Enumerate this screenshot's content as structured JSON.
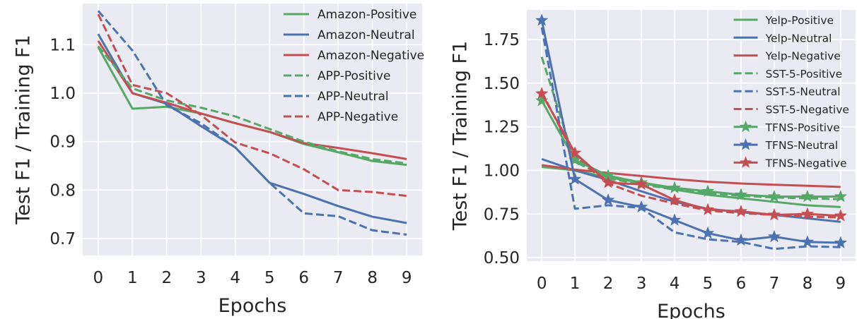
{
  "chart_data": [
    {
      "type": "line",
      "xlabel": "Epochs",
      "ylabel": "Test F1 / Training F1",
      "x": [
        0,
        1,
        2,
        3,
        4,
        5,
        6,
        7,
        8,
        9
      ],
      "xlim": [
        -0.45,
        9.45
      ],
      "ylim": [
        0.665,
        1.185
      ],
      "yticks": [
        0.7,
        0.8,
        0.9,
        1.0,
        1.1
      ],
      "ytick_labels": [
        "0.7",
        "0.8",
        "0.9",
        "1.0",
        "1.1"
      ],
      "grid": true,
      "legend": "top-right",
      "series": [
        {
          "name": "Amazon-Positive",
          "color": "#55a868",
          "style": "solid",
          "marker": "none",
          "values": [
            1.095,
            0.968,
            0.972,
            0.958,
            0.938,
            0.92,
            0.895,
            0.878,
            0.86,
            0.852
          ]
        },
        {
          "name": "Amazon-Neutral",
          "color": "#4c72b0",
          "style": "solid",
          "marker": "none",
          "values": [
            1.122,
            1.0,
            0.978,
            0.932,
            0.888,
            0.815,
            0.792,
            0.767,
            0.745,
            0.732
          ]
        },
        {
          "name": "Amazon-Negative",
          "color": "#c44e52",
          "style": "solid",
          "marker": "none",
          "values": [
            1.108,
            1.0,
            0.98,
            0.958,
            0.938,
            0.92,
            0.897,
            0.887,
            0.876,
            0.864
          ]
        },
        {
          "name": "APP-Positive",
          "color": "#55a868",
          "style": "dashed",
          "marker": "none",
          "values": [
            1.097,
            1.01,
            0.985,
            0.97,
            0.952,
            0.926,
            0.9,
            0.88,
            0.864,
            0.855
          ]
        },
        {
          "name": "APP-Neutral",
          "color": "#4c72b0",
          "style": "dashed",
          "marker": "none",
          "values": [
            1.17,
            1.088,
            0.975,
            0.938,
            0.888,
            0.815,
            0.752,
            0.746,
            0.717,
            0.708
          ]
        },
        {
          "name": "APP-Negative",
          "color": "#c44e52",
          "style": "dashed",
          "marker": "none",
          "values": [
            1.163,
            1.017,
            1.0,
            0.955,
            0.898,
            0.876,
            0.843,
            0.8,
            0.796,
            0.788
          ]
        }
      ]
    },
    {
      "type": "line",
      "xlabel": "Epochs",
      "ylabel": "Test F1 / Training F1",
      "x": [
        0,
        1,
        2,
        3,
        4,
        5,
        6,
        7,
        8,
        9
      ],
      "xlim": [
        -0.45,
        9.45
      ],
      "ylim": [
        0.48,
        1.92
      ],
      "yticks": [
        0.5,
        0.75,
        1.0,
        1.25,
        1.5,
        1.75
      ],
      "ytick_labels": [
        "0.50",
        "0.75",
        "1.00",
        "1.25",
        "1.50",
        "1.75"
      ],
      "grid": true,
      "legend": "top-right",
      "series": [
        {
          "name": "Yelp-Positive",
          "color": "#55a868",
          "style": "solid",
          "marker": "none",
          "values": [
            1.02,
            1.0,
            0.96,
            0.93,
            0.89,
            0.86,
            0.84,
            0.82,
            0.8,
            0.79
          ]
        },
        {
          "name": "Yelp-Neutral",
          "color": "#4c72b0",
          "style": "solid",
          "marker": "none",
          "values": [
            1.065,
            1.0,
            0.945,
            0.88,
            0.82,
            0.78,
            0.76,
            0.745,
            0.725,
            0.705
          ]
        },
        {
          "name": "Yelp-Negative",
          "color": "#c44e52",
          "style": "solid",
          "marker": "none",
          "values": [
            1.03,
            1.005,
            0.985,
            0.968,
            0.95,
            0.935,
            0.925,
            0.918,
            0.912,
            0.905
          ]
        },
        {
          "name": "SST-5-Positive",
          "color": "#55a868",
          "style": "dashed",
          "marker": "none",
          "values": [
            1.65,
            1.05,
            0.955,
            0.92,
            0.89,
            0.87,
            0.855,
            0.845,
            0.84,
            0.835
          ]
        },
        {
          "name": "SST-5-Neutral",
          "color": "#4c72b0",
          "style": "dashed",
          "marker": "none",
          "values": [
            1.82,
            0.78,
            0.8,
            0.785,
            0.645,
            0.605,
            0.59,
            0.55,
            0.565,
            0.56
          ]
        },
        {
          "name": "SST-5-Negative",
          "color": "#c44e52",
          "style": "dashed",
          "marker": "none",
          "values": [
            1.45,
            1.08,
            0.925,
            0.855,
            0.81,
            0.77,
            0.755,
            0.745,
            0.735,
            0.73
          ]
        },
        {
          "name": "TFNS-Positive",
          "color": "#55a868",
          "style": "solid",
          "marker": "star",
          "values": [
            1.4,
            1.06,
            0.97,
            0.93,
            0.9,
            0.88,
            0.86,
            0.85,
            0.85,
            0.85
          ]
        },
        {
          "name": "TFNS-Neutral",
          "color": "#4c72b0",
          "style": "solid",
          "marker": "star",
          "values": [
            1.86,
            0.95,
            0.83,
            0.79,
            0.715,
            0.64,
            0.6,
            0.62,
            0.59,
            0.585
          ]
        },
        {
          "name": "TFNS-Negative",
          "color": "#c44e52",
          "style": "solid",
          "marker": "star",
          "values": [
            1.44,
            1.1,
            0.93,
            0.92,
            0.83,
            0.775,
            0.765,
            0.745,
            0.75,
            0.74
          ]
        }
      ]
    }
  ]
}
